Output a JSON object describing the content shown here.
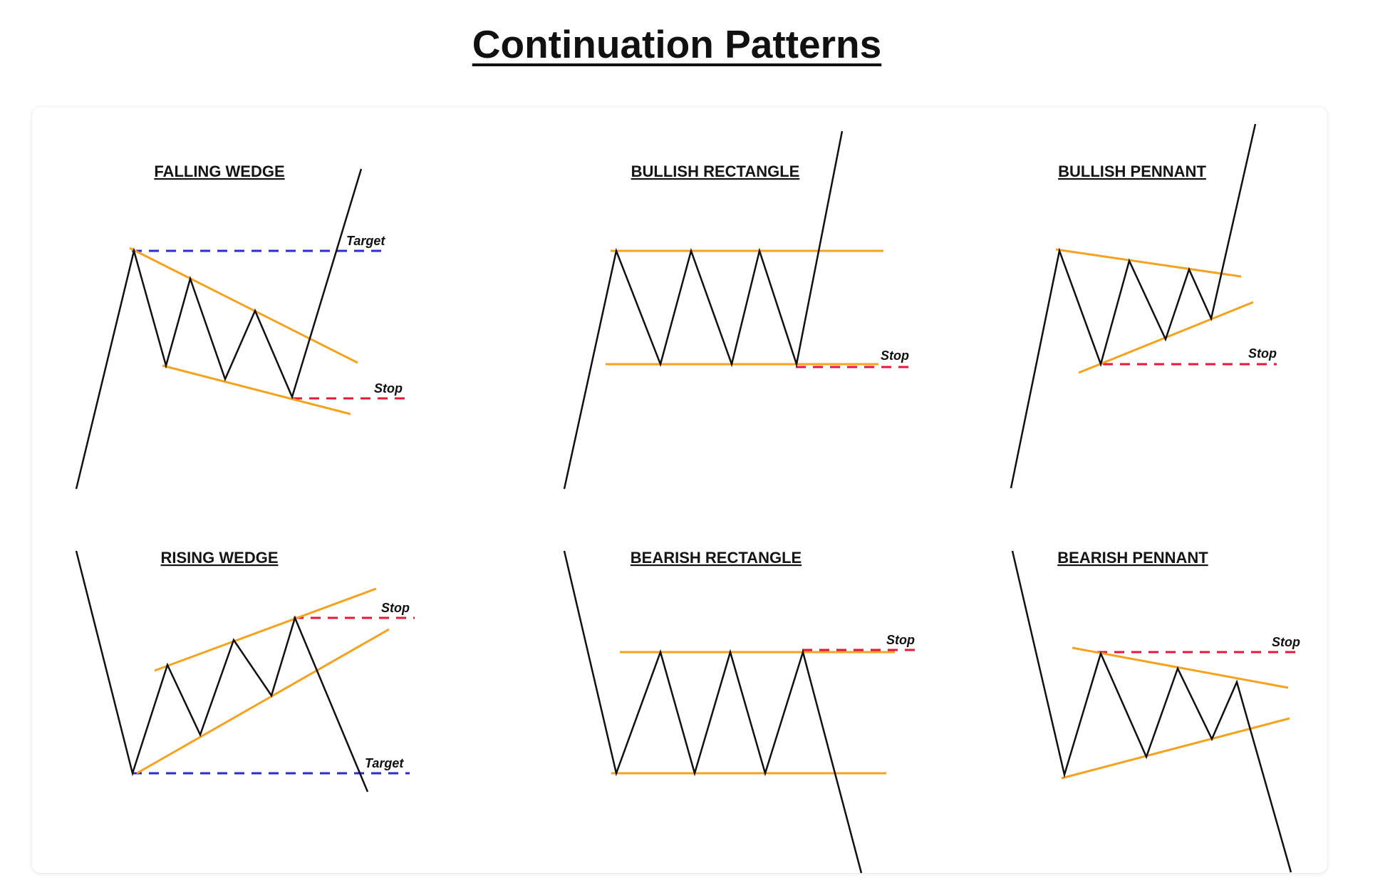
{
  "title": "Continuation Patterns",
  "labels": {
    "target": "Target",
    "stop": "Stop"
  },
  "colors": {
    "price": "#111111",
    "trendline": "#f5a21f",
    "stop": "#e8173a",
    "target": "#2b2bd6"
  },
  "patterns": [
    {
      "name": "FALLING WEDGE"
    },
    {
      "name": "BULLISH RECTANGLE"
    },
    {
      "name": "BULLISH PENNANT"
    },
    {
      "name": "RISING WEDGE"
    },
    {
      "name": "BEARISH RECTANGLE"
    },
    {
      "name": "BEARISH PENNANT"
    }
  ]
}
